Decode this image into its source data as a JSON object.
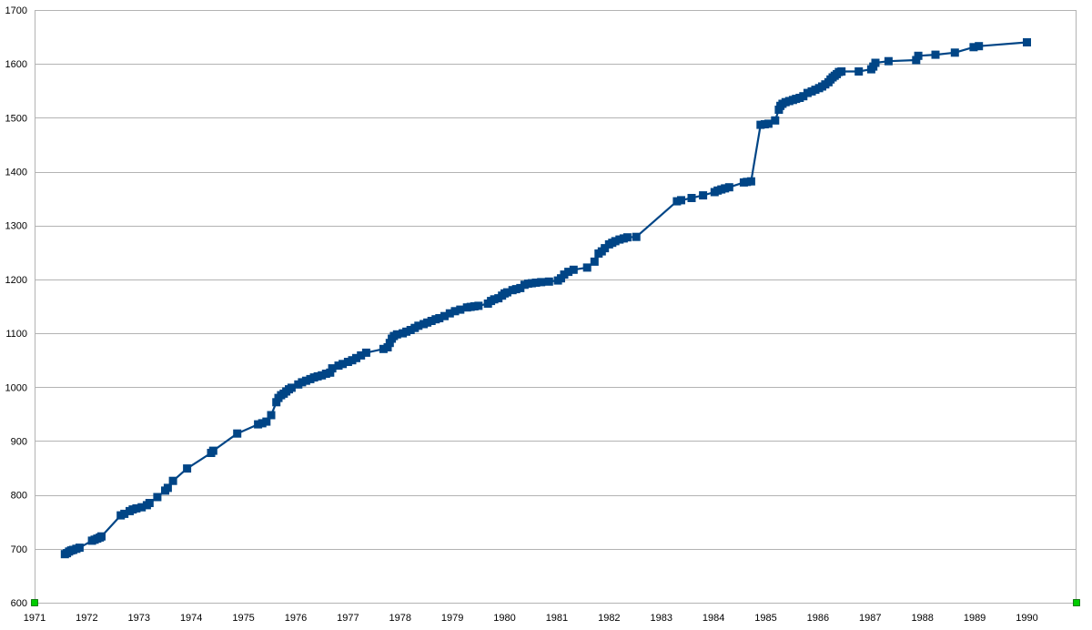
{
  "chart_data": {
    "type": "line",
    "title": "",
    "xlabel": "",
    "ylabel": "",
    "xlim": [
      1971,
      1990.95
    ],
    "ylim": [
      600,
      1700
    ],
    "x_ticks": [
      "1971",
      "1972",
      "1973",
      "1974",
      "1975",
      "1976",
      "1977",
      "1978",
      "1979",
      "1980",
      "1981",
      "1982",
      "1983",
      "1984",
      "1985",
      "1986",
      "1987",
      "1988",
      "1989",
      "1990"
    ],
    "y_ticks": [
      "600",
      "700",
      "800",
      "900",
      "1000",
      "1100",
      "1200",
      "1300",
      "1400",
      "1500",
      "1600",
      "1700"
    ],
    "grid": "horizontal",
    "legend": "none",
    "colors": {
      "series": "#004586",
      "grid": "#b3b3b3",
      "axis_end_marker": "#00cc00"
    },
    "series": [
      {
        "marker": "square",
        "points": [
          [
            1971.58,
            690
          ],
          [
            1971.62,
            692
          ],
          [
            1971.66,
            695
          ],
          [
            1971.7,
            697
          ],
          [
            1971.74,
            698
          ],
          [
            1971.8,
            700
          ],
          [
            1971.86,
            702
          ],
          [
            1972.1,
            715
          ],
          [
            1972.15,
            717
          ],
          [
            1972.2,
            719
          ],
          [
            1972.25,
            721
          ],
          [
            1972.28,
            723
          ],
          [
            1972.65,
            762
          ],
          [
            1972.72,
            765
          ],
          [
            1972.82,
            770
          ],
          [
            1972.88,
            773
          ],
          [
            1972.95,
            775
          ],
          [
            1973.05,
            777
          ],
          [
            1973.15,
            781
          ],
          [
            1973.2,
            785
          ],
          [
            1973.35,
            796
          ],
          [
            1973.5,
            808
          ],
          [
            1973.55,
            813
          ],
          [
            1973.65,
            826
          ],
          [
            1973.92,
            849
          ],
          [
            1974.38,
            878
          ],
          [
            1974.42,
            882
          ],
          [
            1974.88,
            914
          ],
          [
            1975.28,
            931
          ],
          [
            1975.36,
            933
          ],
          [
            1975.44,
            936
          ],
          [
            1975.53,
            948
          ],
          [
            1975.63,
            972
          ],
          [
            1975.67,
            980
          ],
          [
            1975.72,
            985
          ],
          [
            1975.77,
            988
          ],
          [
            1975.82,
            992
          ],
          [
            1975.87,
            996
          ],
          [
            1975.92,
            999
          ],
          [
            1976.05,
            1005
          ],
          [
            1976.12,
            1009
          ],
          [
            1976.2,
            1012
          ],
          [
            1976.28,
            1015
          ],
          [
            1976.35,
            1018
          ],
          [
            1976.42,
            1020
          ],
          [
            1976.5,
            1022
          ],
          [
            1976.58,
            1025
          ],
          [
            1976.66,
            1027
          ],
          [
            1976.7,
            1035
          ],
          [
            1976.82,
            1040
          ],
          [
            1976.9,
            1043
          ],
          [
            1977.0,
            1047
          ],
          [
            1977.08,
            1050
          ],
          [
            1977.16,
            1054
          ],
          [
            1977.25,
            1059
          ],
          [
            1977.35,
            1064
          ],
          [
            1977.68,
            1071
          ],
          [
            1977.76,
            1074
          ],
          [
            1977.8,
            1082
          ],
          [
            1977.84,
            1090
          ],
          [
            1977.88,
            1095
          ],
          [
            1977.94,
            1098
          ],
          [
            1978.05,
            1100
          ],
          [
            1978.12,
            1103
          ],
          [
            1978.2,
            1106
          ],
          [
            1978.28,
            1110
          ],
          [
            1978.35,
            1114
          ],
          [
            1978.45,
            1117
          ],
          [
            1978.52,
            1120
          ],
          [
            1978.6,
            1123
          ],
          [
            1978.68,
            1126
          ],
          [
            1978.75,
            1128
          ],
          [
            1978.85,
            1132
          ],
          [
            1978.95,
            1137
          ],
          [
            1979.05,
            1141
          ],
          [
            1979.15,
            1144
          ],
          [
            1979.28,
            1148
          ],
          [
            1979.35,
            1149
          ],
          [
            1979.42,
            1150
          ],
          [
            1979.5,
            1151
          ],
          [
            1979.68,
            1155
          ],
          [
            1979.74,
            1160
          ],
          [
            1979.8,
            1163
          ],
          [
            1979.88,
            1165
          ],
          [
            1979.95,
            1170
          ],
          [
            1980.0,
            1174
          ],
          [
            1980.05,
            1176
          ],
          [
            1980.15,
            1180
          ],
          [
            1980.22,
            1182
          ],
          [
            1980.3,
            1184
          ],
          [
            1980.38,
            1190
          ],
          [
            1980.45,
            1192
          ],
          [
            1980.52,
            1193
          ],
          [
            1980.6,
            1194
          ],
          [
            1980.7,
            1195
          ],
          [
            1980.85,
            1196
          ],
          [
            1981.02,
            1198
          ],
          [
            1981.08,
            1202
          ],
          [
            1981.14,
            1209
          ],
          [
            1981.22,
            1214
          ],
          [
            1981.32,
            1218
          ],
          [
            1981.58,
            1222
          ],
          [
            1981.72,
            1233
          ],
          [
            1981.8,
            1248
          ],
          [
            1981.86,
            1252
          ],
          [
            1981.92,
            1258
          ],
          [
            1982.0,
            1265
          ],
          [
            1982.06,
            1268
          ],
          [
            1982.12,
            1271
          ],
          [
            1982.2,
            1274
          ],
          [
            1982.28,
            1276
          ],
          [
            1982.35,
            1278
          ],
          [
            1982.52,
            1279
          ],
          [
            1983.3,
            1345
          ],
          [
            1983.38,
            1347
          ],
          [
            1983.58,
            1351
          ],
          [
            1983.8,
            1356
          ],
          [
            1984.02,
            1362
          ],
          [
            1984.08,
            1365
          ],
          [
            1984.15,
            1367
          ],
          [
            1984.22,
            1369
          ],
          [
            1984.3,
            1371
          ],
          [
            1984.58,
            1380
          ],
          [
            1984.64,
            1381
          ],
          [
            1984.72,
            1382
          ],
          [
            1984.9,
            1487
          ],
          [
            1984.98,
            1488
          ],
          [
            1985.05,
            1489
          ],
          [
            1985.18,
            1495
          ],
          [
            1985.25,
            1515
          ],
          [
            1985.28,
            1522
          ],
          [
            1985.32,
            1526
          ],
          [
            1985.38,
            1529
          ],
          [
            1985.45,
            1531
          ],
          [
            1985.52,
            1533
          ],
          [
            1985.58,
            1535
          ],
          [
            1985.65,
            1537
          ],
          [
            1985.72,
            1540
          ],
          [
            1985.8,
            1546
          ],
          [
            1985.88,
            1549
          ],
          [
            1985.95,
            1552
          ],
          [
            1986.02,
            1555
          ],
          [
            1986.08,
            1558
          ],
          [
            1986.14,
            1562
          ],
          [
            1986.2,
            1566
          ],
          [
            1986.24,
            1571
          ],
          [
            1986.28,
            1575
          ],
          [
            1986.32,
            1578
          ],
          [
            1986.36,
            1581
          ],
          [
            1986.4,
            1585
          ],
          [
            1986.45,
            1586
          ],
          [
            1986.78,
            1586
          ],
          [
            1987.02,
            1590
          ],
          [
            1987.06,
            1595
          ],
          [
            1987.1,
            1602
          ],
          [
            1987.35,
            1605
          ],
          [
            1987.88,
            1607
          ],
          [
            1987.92,
            1615
          ],
          [
            1988.25,
            1617
          ],
          [
            1988.62,
            1621
          ],
          [
            1988.98,
            1631
          ],
          [
            1989.08,
            1633
          ],
          [
            1990.0,
            1640
          ]
        ]
      }
    ]
  }
}
